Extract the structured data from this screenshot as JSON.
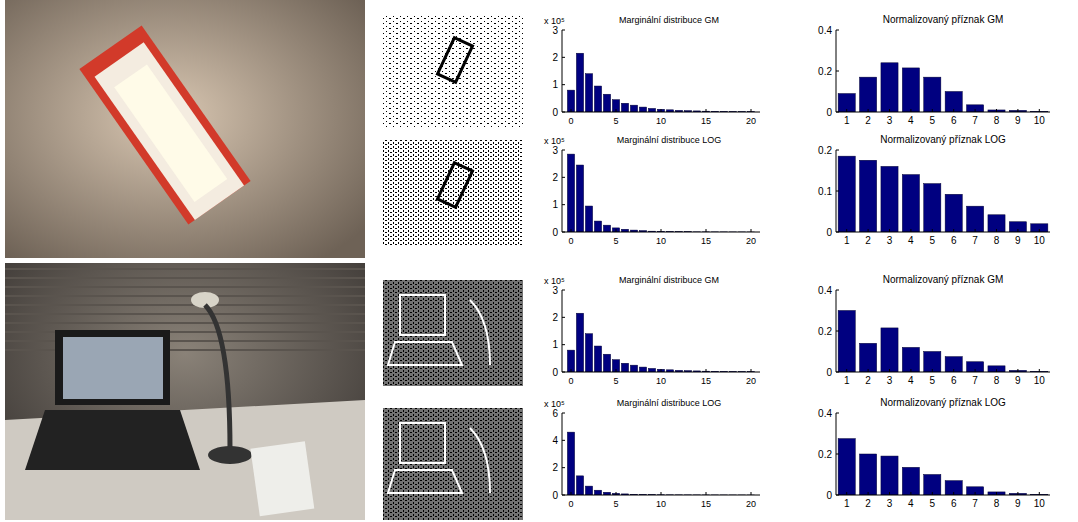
{
  "chart_data": [
    {
      "type": "bar",
      "title": "Marginální distribuce GM",
      "annotation": "x 10⁵",
      "color": "#000080",
      "x": [
        0,
        1,
        2,
        3,
        4,
        5,
        6,
        7,
        8,
        9,
        10,
        11,
        12,
        13,
        14,
        15,
        16,
        17,
        18,
        19,
        20
      ],
      "values": [
        0.8,
        2.15,
        1.4,
        0.95,
        0.65,
        0.45,
        0.32,
        0.25,
        0.18,
        0.13,
        0.1,
        0.08,
        0.06,
        0.05,
        0.04,
        0.03,
        0.025,
        0.02,
        0.015,
        0.01,
        0.01
      ],
      "xlim": [
        -1,
        21
      ],
      "xticks": [
        0,
        5,
        10,
        15,
        20
      ],
      "ylim": [
        0,
        3
      ],
      "yticks": [
        0,
        1,
        2,
        3
      ],
      "grid": false
    },
    {
      "type": "bar",
      "title": "Normalizovaný příznak GM",
      "color": "#000080",
      "categories": [
        "1",
        "2",
        "3",
        "4",
        "5",
        "6",
        "7",
        "8",
        "9",
        "10"
      ],
      "values": [
        0.09,
        0.17,
        0.24,
        0.215,
        0.17,
        0.1,
        0.035,
        0.01,
        0.008,
        0.003
      ],
      "ylim": [
        0,
        0.4
      ],
      "yticks": [
        0,
        0.2,
        0.4
      ],
      "grid": false
    },
    {
      "type": "bar",
      "title": "Marginální distribuce LOG",
      "annotation": "x 10⁵",
      "color": "#000080",
      "x": [
        0,
        1,
        2,
        3,
        4,
        5,
        6,
        7,
        8,
        9,
        10,
        11,
        12,
        13,
        14,
        15,
        16,
        17,
        18,
        19,
        20
      ],
      "values": [
        2.85,
        2.45,
        0.95,
        0.4,
        0.25,
        0.15,
        0.1,
        0.07,
        0.05,
        0.03,
        0.02,
        0.015,
        0.01,
        0.01,
        0.005,
        0.005,
        0.004,
        0.003,
        0.002,
        0.002,
        0.001
      ],
      "xlim": [
        -1,
        21
      ],
      "xticks": [
        0,
        5,
        10,
        15,
        20
      ],
      "ylim": [
        0,
        3
      ],
      "yticks": [
        0,
        1,
        2,
        3
      ],
      "grid": false
    },
    {
      "type": "bar",
      "title": "Normalizovaný příznak LOG",
      "color": "#000080",
      "categories": [
        "1",
        "2",
        "3",
        "4",
        "5",
        "6",
        "7",
        "8",
        "9",
        "10"
      ],
      "values": [
        0.185,
        0.175,
        0.16,
        0.14,
        0.118,
        0.092,
        0.063,
        0.042,
        0.025,
        0.02
      ],
      "ylim": [
        0,
        0.2
      ],
      "yticks": [
        0,
        0.1,
        0.2
      ],
      "grid": false
    },
    {
      "type": "bar",
      "title": "Marginální distribuce GM",
      "annotation": "x 10⁵",
      "color": "#000080",
      "x": [
        0,
        1,
        2,
        3,
        4,
        5,
        6,
        7,
        8,
        9,
        10,
        11,
        12,
        13,
        14,
        15,
        16,
        17,
        18,
        19,
        20
      ],
      "values": [
        0.8,
        2.15,
        1.4,
        0.95,
        0.65,
        0.45,
        0.32,
        0.25,
        0.18,
        0.13,
        0.1,
        0.08,
        0.06,
        0.05,
        0.04,
        0.03,
        0.025,
        0.02,
        0.015,
        0.01,
        0.01
      ],
      "xlim": [
        -1,
        21
      ],
      "xticks": [
        0,
        5,
        10,
        15,
        20
      ],
      "ylim": [
        0,
        3
      ],
      "yticks": [
        0,
        1,
        2,
        3
      ],
      "grid": false
    },
    {
      "type": "bar",
      "title": "Normalizovaný příznak GM",
      "color": "#000080",
      "categories": [
        "1",
        "2",
        "3",
        "4",
        "5",
        "6",
        "7",
        "8",
        "9",
        "10"
      ],
      "values": [
        0.3,
        0.14,
        0.215,
        0.12,
        0.1,
        0.075,
        0.05,
        0.03,
        0.008,
        0.003
      ],
      "ylim": [
        0,
        0.4
      ],
      "yticks": [
        0,
        0.2,
        0.4
      ],
      "grid": false
    },
    {
      "type": "bar",
      "title": "Marginální distribuce LOG",
      "annotation": "x 10⁵",
      "color": "#000080",
      "x": [
        0,
        1,
        2,
        3,
        4,
        5,
        6,
        7,
        8,
        9,
        10,
        11,
        12,
        13,
        14,
        15,
        16,
        17,
        18,
        19,
        20
      ],
      "values": [
        4.6,
        1.4,
        0.65,
        0.35,
        0.2,
        0.12,
        0.08,
        0.05,
        0.035,
        0.025,
        0.018,
        0.012,
        0.01,
        0.008,
        0.006,
        0.005,
        0.004,
        0.003,
        0.002,
        0.002,
        0.001
      ],
      "xlim": [
        -1,
        21
      ],
      "xticks": [
        0,
        5,
        10,
        15,
        20
      ],
      "ylim": [
        0,
        6
      ],
      "yticks": [
        0,
        2,
        4,
        6
      ],
      "grid": false
    },
    {
      "type": "bar",
      "title": "Normalizovaný příznak LOG",
      "color": "#000080",
      "categories": [
        "1",
        "2",
        "3",
        "4",
        "5",
        "6",
        "7",
        "8",
        "9",
        "10"
      ],
      "values": [
        0.275,
        0.2,
        0.19,
        0.135,
        0.1,
        0.07,
        0.04,
        0.015,
        0.008,
        0.003
      ],
      "ylim": [
        0,
        0.4
      ],
      "yticks": [
        0,
        0.2,
        0.4
      ],
      "grid": false
    }
  ]
}
